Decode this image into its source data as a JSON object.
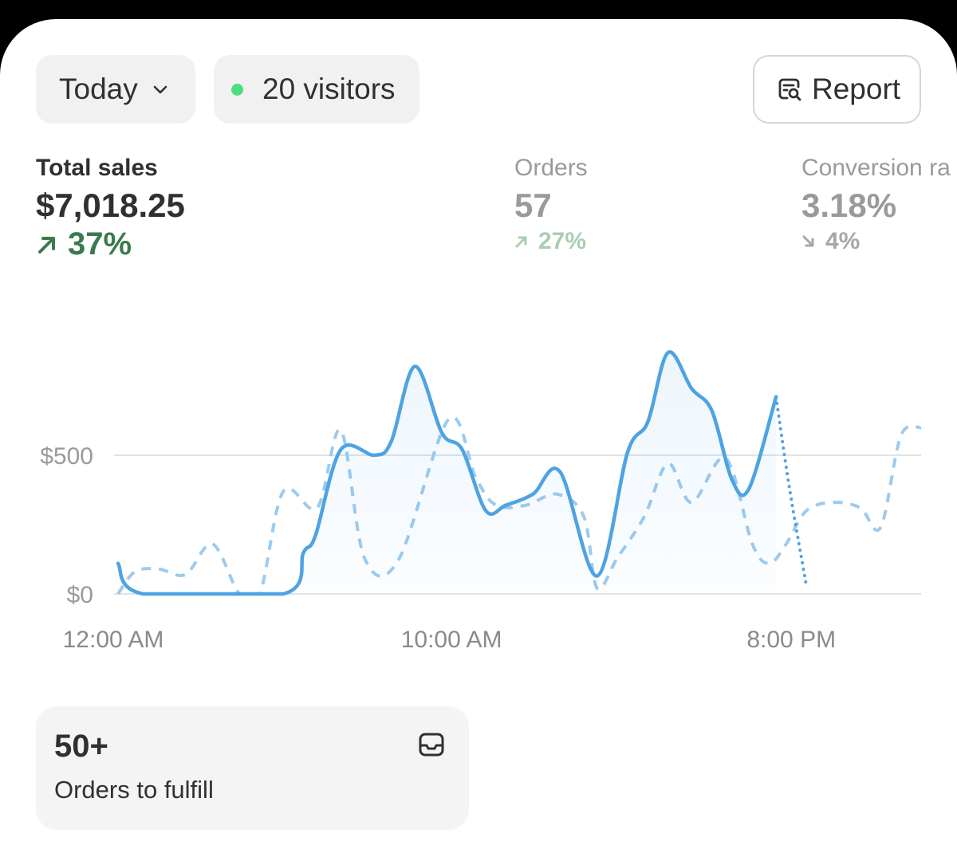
{
  "filters": {
    "date_range": "Today",
    "visitors": "20 visitors"
  },
  "report_button": "Report",
  "metrics": {
    "total_sales": {
      "label": "Total sales",
      "value": "$7,018.25",
      "delta": "37%",
      "direction": "up"
    },
    "orders": {
      "label": "Orders",
      "value": "57",
      "delta": "27%",
      "direction": "up"
    },
    "conversion": {
      "label": "Conversion ra",
      "value": "3.18%",
      "delta": "4%",
      "direction": "down"
    }
  },
  "chart_data": {
    "type": "line",
    "y_ticks": [
      "$500",
      "$0"
    ],
    "y_tick_values": [
      500,
      0
    ],
    "ylim": [
      0,
      930
    ],
    "x_ticks": [
      "12:00 AM",
      "10:00 AM",
      "8:00 PM"
    ],
    "x_tick_hours": [
      0,
      10,
      20
    ],
    "xlim": [
      0,
      23.8
    ],
    "grid": true,
    "series": [
      {
        "style": "solid",
        "color": "#4ea3e3",
        "points": [
          [
            0,
            110
          ],
          [
            0.75,
            0
          ],
          [
            4.9,
            0
          ],
          [
            5.5,
            150
          ],
          [
            5.85,
            210
          ],
          [
            6.6,
            520
          ],
          [
            7.6,
            500
          ],
          [
            8.1,
            550
          ],
          [
            8.8,
            820
          ],
          [
            9.6,
            580
          ],
          [
            10.2,
            520
          ],
          [
            10.9,
            300
          ],
          [
            11.5,
            320
          ],
          [
            12.3,
            360
          ],
          [
            13.1,
            440
          ],
          [
            14.2,
            65
          ],
          [
            15.1,
            510
          ],
          [
            15.7,
            620
          ],
          [
            16.3,
            870
          ],
          [
            17.0,
            740
          ],
          [
            17.6,
            660
          ],
          [
            18.2,
            410
          ],
          [
            18.7,
            380
          ],
          [
            19.5,
            710
          ]
        ]
      },
      {
        "style": "dotted",
        "color": "#4ea3e3",
        "points": [
          [
            19.5,
            710
          ],
          [
            19.9,
            380
          ],
          [
            20.4,
            30
          ]
        ]
      },
      {
        "style": "dashed",
        "color": "#9ccbee",
        "points": [
          [
            0,
            0
          ],
          [
            0.5,
            80
          ],
          [
            1.2,
            90
          ],
          [
            2.0,
            70
          ],
          [
            2.8,
            180
          ],
          [
            3.6,
            0
          ],
          [
            4.2,
            0
          ],
          [
            4.9,
            370
          ],
          [
            5.9,
            310
          ],
          [
            6.6,
            590
          ],
          [
            7.3,
            130
          ],
          [
            8.3,
            120
          ],
          [
            9.8,
            630
          ],
          [
            10.6,
            420
          ],
          [
            11.2,
            320
          ],
          [
            12.1,
            320
          ],
          [
            13.0,
            360
          ],
          [
            13.8,
            280
          ],
          [
            14.2,
            20
          ],
          [
            14.8,
            130
          ],
          [
            15.6,
            280
          ],
          [
            16.3,
            470
          ],
          [
            17.0,
            330
          ],
          [
            18.0,
            490
          ],
          [
            18.8,
            180
          ],
          [
            19.3,
            110
          ],
          [
            19.8,
            180
          ],
          [
            20.4,
            300
          ],
          [
            21.2,
            330
          ],
          [
            22.0,
            310
          ],
          [
            22.6,
            240
          ],
          [
            23.2,
            570
          ],
          [
            23.8,
            600
          ]
        ]
      }
    ]
  },
  "fulfill_card": {
    "count": "50+",
    "label": "Orders to fulfill"
  },
  "colors": {
    "accent_line": "#4ea3e3",
    "positive": "#3b7a4d",
    "live_dot": "#4ade80"
  },
  "icons": [
    "chevron-down-icon",
    "live-status-dot",
    "report-search-icon",
    "arrow-up-right-icon",
    "arrow-down-right-icon",
    "inbox-tray-icon"
  ]
}
